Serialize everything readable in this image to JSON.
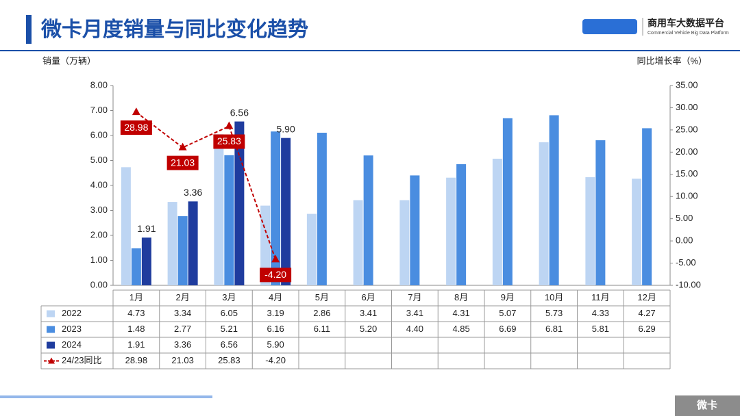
{
  "header": {
    "title": "微卡月度销量与同比变化趋势",
    "logo_name": "商用车大数据平台",
    "logo_subtitle": "Commercial Vehicle Big Data Platform"
  },
  "footer_tag": "微卡",
  "chart_data": {
    "type": "bar",
    "y_label": "销量（万辆）",
    "y2_label": "同比增长率（%）",
    "categories": [
      "1月",
      "2月",
      "3月",
      "4月",
      "5月",
      "6月",
      "7月",
      "8月",
      "9月",
      "10月",
      "11月",
      "12月"
    ],
    "ylim": [
      0,
      8
    ],
    "yticks": [
      {
        "value": 0,
        "label": "0.00"
      },
      {
        "value": 1,
        "label": "1.00"
      },
      {
        "value": 2,
        "label": "2.00"
      },
      {
        "value": 3,
        "label": "3.00"
      },
      {
        "value": 4,
        "label": "4.00"
      },
      {
        "value": 5,
        "label": "5.00"
      },
      {
        "value": 6,
        "label": "6.00"
      },
      {
        "value": 7,
        "label": "7.00"
      },
      {
        "value": 8,
        "label": "8.00"
      }
    ],
    "y2lim": [
      -10,
      35
    ],
    "y2ticks": [
      {
        "value": -10,
        "label": "-10.00"
      },
      {
        "value": -5,
        "label": "-5.00"
      },
      {
        "value": 0,
        "label": "0.00"
      },
      {
        "value": 5,
        "label": "5.00"
      },
      {
        "value": 10,
        "label": "10.00"
      },
      {
        "value": 15,
        "label": "15.00"
      },
      {
        "value": 20,
        "label": "20.00"
      },
      {
        "value": 25,
        "label": "25.00"
      },
      {
        "value": 30,
        "label": "30.00"
      },
      {
        "value": 35,
        "label": "35.00"
      }
    ],
    "series": [
      {
        "name": "2022",
        "type": "bar",
        "color": "#bdd5f3",
        "values": [
          4.73,
          3.34,
          6.05,
          3.19,
          2.86,
          3.41,
          3.41,
          4.31,
          5.07,
          5.73,
          4.33,
          4.27
        ],
        "value_labels": [
          "4.73",
          "3.34",
          "6.05",
          "3.19",
          "2.86",
          "3.41",
          "3.41",
          "4.31",
          "5.07",
          "5.73",
          "4.33",
          "4.27"
        ]
      },
      {
        "name": "2023",
        "type": "bar",
        "color": "#4a8de0",
        "values": [
          1.48,
          2.77,
          5.21,
          6.16,
          6.11,
          5.2,
          4.4,
          4.85,
          6.69,
          6.81,
          5.81,
          6.29
        ],
        "value_labels": [
          "1.48",
          "2.77",
          "5.21",
          "6.16",
          "6.11",
          "5.20",
          "4.40",
          "4.85",
          "6.69",
          "6.81",
          "5.81",
          "6.29"
        ]
      },
      {
        "name": "2024",
        "type": "bar",
        "color": "#1f3c9e",
        "values": [
          1.91,
          3.36,
          6.56,
          5.9,
          null,
          null,
          null,
          null,
          null,
          null,
          null,
          null
        ],
        "value_labels": [
          "1.91",
          "3.36",
          "6.56",
          "5.90",
          null,
          null,
          null,
          null,
          null,
          null,
          null,
          null
        ],
        "data_labels": true
      },
      {
        "name": "24/23同比",
        "type": "line",
        "axis": "y2",
        "color": "#c00000",
        "values": [
          28.98,
          21.03,
          25.83,
          -4.2,
          null,
          null,
          null,
          null,
          null,
          null,
          null,
          null
        ],
        "value_labels": [
          "28.98",
          "21.03",
          "25.83",
          "-4.20",
          null,
          null,
          null,
          null,
          null,
          null,
          null,
          null
        ]
      }
    ]
  }
}
